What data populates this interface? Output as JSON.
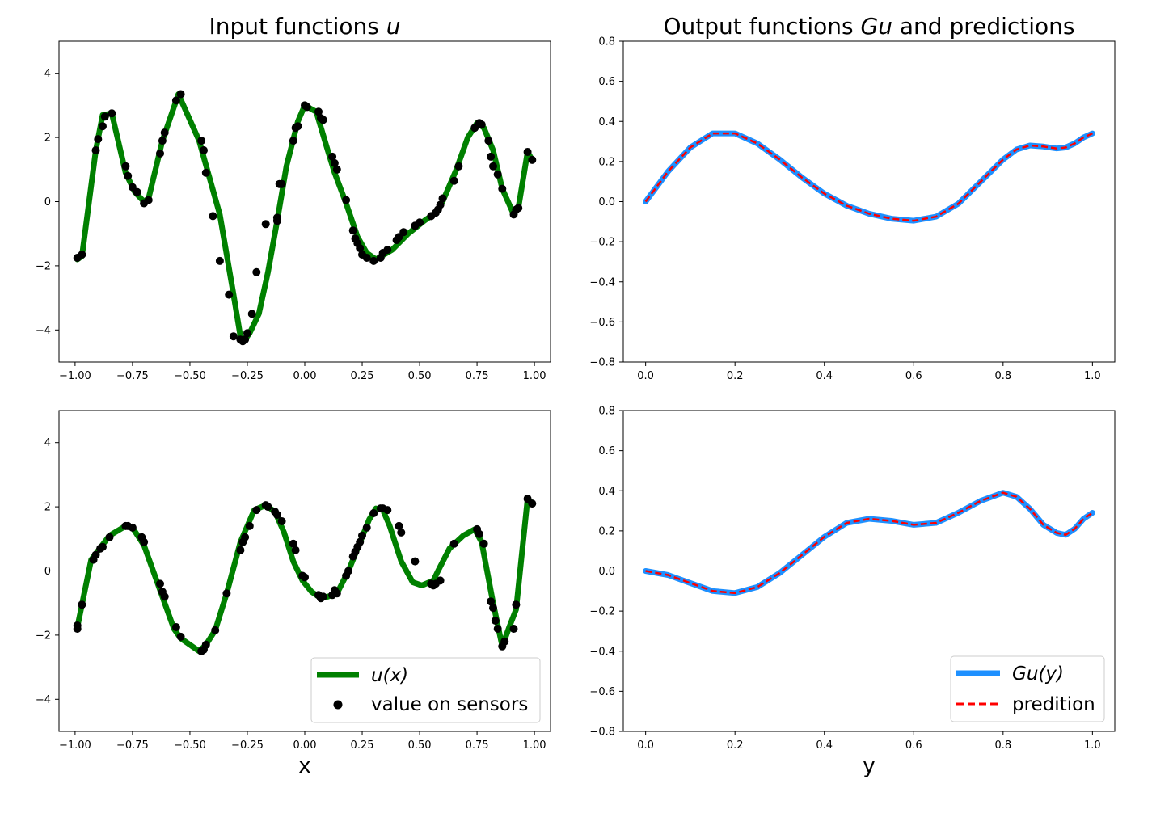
{
  "titles": {
    "left_prefix": "Input functions ",
    "left_var": "u",
    "right_prefix": "Output functions ",
    "right_var": "Gu",
    "right_suffix": " and predictions"
  },
  "xlabels": {
    "left": "x",
    "right": "y"
  },
  "legends": {
    "input": {
      "line": "u(x)",
      "points": "value on sensors"
    },
    "output": {
      "line": "Gu(y)",
      "dashed": "predition"
    }
  },
  "colors": {
    "input_line": "#008000",
    "sensor": "#000000",
    "output_line": "#1e90ff",
    "prediction": "#ff0000"
  },
  "chart_data": [
    {
      "type": "line",
      "panel": "top-left",
      "title": "Input functions u",
      "xlabel": "",
      "xlim": [
        -1.07,
        1.07
      ],
      "ylim": [
        -5,
        5
      ],
      "xticks": [
        "-1.00",
        "-0.75",
        "-0.50",
        "-0.25",
        "0.00",
        "0.25",
        "0.50",
        "0.75",
        "1.00"
      ],
      "yticks": [
        "-4",
        "-2",
        "0",
        "2",
        "4"
      ],
      "series": [
        {
          "x": [
            -0.99,
            -0.97,
            -0.91,
            -0.88,
            -0.84,
            -0.78,
            -0.74,
            -0.7,
            -0.68,
            -0.62,
            -0.55,
            -0.46,
            -0.37,
            -0.31,
            -0.28,
            -0.26,
            -0.24,
            -0.2,
            -0.16,
            -0.12,
            -0.08,
            -0.03,
            0.0,
            0.05,
            0.1,
            0.13,
            0.18,
            0.23,
            0.27,
            0.31,
            0.38,
            0.45,
            0.52,
            0.57,
            0.6,
            0.66,
            0.71,
            0.75,
            0.78,
            0.82,
            0.86,
            0.91,
            0.93,
            0.97,
            0.99
          ],
          "y": [
            -1.8,
            -1.7,
            1.6,
            2.7,
            2.75,
            0.9,
            0.3,
            0.0,
            0.1,
            1.9,
            3.35,
            1.9,
            -0.4,
            -2.9,
            -4.2,
            -4.3,
            -4.1,
            -3.5,
            -2.2,
            -0.6,
            1.1,
            2.5,
            3.0,
            2.8,
            1.6,
            0.9,
            -0.05,
            -1.1,
            -1.6,
            -1.8,
            -1.5,
            -1.0,
            -0.6,
            -0.35,
            0.0,
            1.0,
            2.0,
            2.45,
            2.3,
            1.6,
            0.4,
            -0.4,
            -0.2,
            1.55,
            1.3
          ]
        },
        {
          "x": [
            -0.99,
            -0.97,
            -0.91,
            -0.9,
            -0.88,
            -0.87,
            -0.84,
            -0.78,
            -0.77,
            -0.75,
            -0.73,
            -0.7,
            -0.68,
            -0.63,
            -0.62,
            -0.61,
            -0.56,
            -0.54,
            -0.45,
            -0.44,
            -0.43,
            -0.4,
            -0.37,
            -0.33,
            -0.31,
            -0.28,
            -0.27,
            -0.26,
            -0.25,
            -0.23,
            -0.21,
            -0.17,
            -0.12,
            -0.12,
            -0.11,
            -0.1,
            -0.05,
            -0.04,
            -0.03,
            0.0,
            0.01,
            0.06,
            0.07,
            0.08,
            0.12,
            0.13,
            0.14,
            0.18,
            0.21,
            0.22,
            0.23,
            0.24,
            0.25,
            0.27,
            0.3,
            0.33,
            0.34,
            0.36,
            0.4,
            0.41,
            0.43,
            0.48,
            0.5,
            0.55,
            0.57,
            0.58,
            0.59,
            0.6,
            0.65,
            0.67,
            0.74,
            0.76,
            0.77,
            0.8,
            0.81,
            0.82,
            0.84,
            0.86,
            0.91,
            0.92,
            0.93,
            0.97,
            0.99
          ],
          "y": [
            -1.75,
            -1.65,
            1.6,
            1.95,
            2.35,
            2.65,
            2.75,
            1.1,
            0.8,
            0.45,
            0.3,
            -0.05,
            0.05,
            1.5,
            1.9,
            2.15,
            3.15,
            3.35,
            1.9,
            1.6,
            0.9,
            -0.45,
            -1.85,
            -2.9,
            -4.2,
            -4.3,
            -4.35,
            -4.3,
            -4.1,
            -3.5,
            -2.2,
            -0.7,
            -0.5,
            -0.6,
            0.55,
            0.55,
            1.9,
            2.3,
            2.35,
            3.0,
            2.95,
            2.8,
            2.6,
            2.55,
            1.4,
            1.2,
            1.0,
            0.05,
            -0.9,
            -1.15,
            -1.3,
            -1.45,
            -1.65,
            -1.75,
            -1.85,
            -1.75,
            -1.6,
            -1.5,
            -1.2,
            -1.1,
            -0.95,
            -0.75,
            -0.65,
            -0.45,
            -0.35,
            -0.25,
            -0.1,
            0.1,
            0.65,
            1.1,
            2.3,
            2.45,
            2.4,
            1.9,
            1.4,
            1.1,
            0.85,
            0.4,
            -0.4,
            -0.25,
            -0.2,
            1.55,
            1.3
          ]
        }
      ]
    },
    {
      "type": "line",
      "panel": "top-right",
      "title": "Output functions Gu and predictions",
      "xlabel": "",
      "xlim": [
        -0.05,
        1.05
      ],
      "ylim": [
        -0.8,
        0.8
      ],
      "xticks": [
        "0.0",
        "0.2",
        "0.4",
        "0.6",
        "0.8",
        "1.0"
      ],
      "yticks": [
        "-0.8",
        "-0.6",
        "-0.4",
        "-0.2",
        "0.0",
        "0.2",
        "0.4",
        "0.6",
        "0.8"
      ],
      "x": [
        0.0,
        0.05,
        0.1,
        0.15,
        0.2,
        0.25,
        0.3,
        0.35,
        0.4,
        0.45,
        0.5,
        0.55,
        0.6,
        0.65,
        0.7,
        0.75,
        0.8,
        0.83,
        0.86,
        0.89,
        0.92,
        0.94,
        0.96,
        0.98,
        1.0
      ],
      "series": [
        {
          "values": [
            0.0,
            0.15,
            0.27,
            0.34,
            0.34,
            0.29,
            0.21,
            0.12,
            0.04,
            -0.02,
            -0.06,
            -0.085,
            -0.095,
            -0.075,
            -0.01,
            0.1,
            0.21,
            0.26,
            0.28,
            0.275,
            0.265,
            0.27,
            0.29,
            0.32,
            0.34
          ]
        },
        {
          "values": [
            0.0,
            0.15,
            0.27,
            0.34,
            0.34,
            0.29,
            0.21,
            0.12,
            0.04,
            -0.02,
            -0.06,
            -0.085,
            -0.095,
            -0.075,
            -0.01,
            0.1,
            0.21,
            0.26,
            0.28,
            0.275,
            0.265,
            0.27,
            0.29,
            0.32,
            0.34
          ]
        }
      ]
    },
    {
      "type": "line",
      "panel": "bottom-left",
      "xlabel": "x",
      "xlim": [
        -1.07,
        1.07
      ],
      "ylim": [
        -5,
        5
      ],
      "xticks": [
        "-1.00",
        "-0.75",
        "-0.50",
        "-0.25",
        "0.00",
        "0.25",
        "0.50",
        "0.75",
        "1.00"
      ],
      "yticks": [
        "-4",
        "-2",
        "0",
        "2",
        "4"
      ],
      "series": [
        {
          "x": [
            -0.99,
            -0.97,
            -0.93,
            -0.85,
            -0.78,
            -0.75,
            -0.7,
            -0.64,
            -0.57,
            -0.54,
            -0.46,
            -0.43,
            -0.39,
            -0.34,
            -0.28,
            -0.22,
            -0.17,
            -0.13,
            -0.09,
            -0.05,
            -0.01,
            0.03,
            0.07,
            0.1,
            0.14,
            0.19,
            0.23,
            0.28,
            0.31,
            0.34,
            0.37,
            0.42,
            0.47,
            0.51,
            0.56,
            0.58,
            0.63,
            0.69,
            0.74,
            0.77,
            0.82,
            0.86,
            0.89,
            0.92,
            0.97,
            0.99
          ],
          "y": [
            -1.75,
            -1.05,
            0.35,
            1.1,
            1.4,
            1.35,
            0.8,
            -0.4,
            -1.8,
            -2.1,
            -2.5,
            -2.3,
            -1.85,
            -0.7,
            0.9,
            1.9,
            2.05,
            1.85,
            1.2,
            0.3,
            -0.3,
            -0.65,
            -0.85,
            -0.8,
            -0.7,
            0.0,
            0.7,
            1.6,
            1.95,
            1.9,
            1.4,
            0.3,
            -0.35,
            -0.45,
            -0.3,
            0.0,
            0.7,
            1.1,
            1.3,
            0.9,
            -1.0,
            -2.35,
            -1.75,
            -1.2,
            2.25,
            2.1
          ]
        },
        {
          "x": [
            -0.99,
            -0.99,
            -0.97,
            -0.92,
            -0.91,
            -0.89,
            -0.88,
            -0.85,
            -0.78,
            -0.77,
            -0.75,
            -0.71,
            -0.7,
            -0.63,
            -0.62,
            -0.61,
            -0.56,
            -0.54,
            -0.45,
            -0.44,
            -0.43,
            -0.39,
            -0.34,
            -0.28,
            -0.27,
            -0.26,
            -0.24,
            -0.21,
            -0.17,
            -0.16,
            -0.13,
            -0.12,
            -0.1,
            -0.05,
            -0.04,
            -0.01,
            0.0,
            0.06,
            0.07,
            0.08,
            0.12,
            0.13,
            0.14,
            0.18,
            0.19,
            0.21,
            0.22,
            0.23,
            0.24,
            0.25,
            0.27,
            0.3,
            0.33,
            0.34,
            0.36,
            0.41,
            0.42,
            0.48,
            0.55,
            0.56,
            0.57,
            0.59,
            0.65,
            0.75,
            0.76,
            0.78,
            0.81,
            0.82,
            0.83,
            0.84,
            0.86,
            0.87,
            0.91,
            0.92,
            0.97,
            0.99
          ],
          "y": [
            -1.8,
            -1.7,
            -1.05,
            0.35,
            0.5,
            0.7,
            0.75,
            1.05,
            1.4,
            1.4,
            1.35,
            1.05,
            0.9,
            -0.4,
            -0.65,
            -0.8,
            -1.75,
            -2.05,
            -2.5,
            -2.45,
            -2.3,
            -1.85,
            -0.7,
            0.65,
            0.9,
            1.05,
            1.4,
            1.9,
            2.05,
            2.0,
            1.85,
            1.75,
            1.55,
            0.85,
            0.65,
            -0.15,
            -0.2,
            -0.75,
            -0.85,
            -0.8,
            -0.75,
            -0.6,
            -0.7,
            -0.15,
            0.0,
            0.45,
            0.6,
            0.75,
            0.9,
            1.1,
            1.35,
            1.8,
            1.95,
            1.95,
            1.9,
            1.4,
            1.2,
            0.3,
            -0.4,
            -0.45,
            -0.4,
            -0.3,
            0.85,
            1.3,
            1.15,
            0.85,
            -0.95,
            -1.15,
            -1.55,
            -1.8,
            -2.35,
            -2.2,
            -1.8,
            -1.05,
            2.25,
            2.1
          ]
        }
      ]
    },
    {
      "type": "line",
      "panel": "bottom-right",
      "xlabel": "y",
      "xlim": [
        -0.05,
        1.05
      ],
      "ylim": [
        -0.8,
        0.8
      ],
      "xticks": [
        "0.0",
        "0.2",
        "0.4",
        "0.6",
        "0.8",
        "1.0"
      ],
      "yticks": [
        "-0.8",
        "-0.6",
        "-0.4",
        "-0.2",
        "0.0",
        "0.2",
        "0.4",
        "0.6",
        "0.8"
      ],
      "legend": "lower-right",
      "x": [
        0.0,
        0.05,
        0.1,
        0.15,
        0.2,
        0.25,
        0.3,
        0.35,
        0.4,
        0.45,
        0.5,
        0.55,
        0.6,
        0.65,
        0.7,
        0.75,
        0.8,
        0.83,
        0.86,
        0.89,
        0.92,
        0.94,
        0.96,
        0.98,
        1.0
      ],
      "series": [
        {
          "name": "Gu(y)",
          "values": [
            0.0,
            -0.02,
            -0.06,
            -0.1,
            -0.11,
            -0.08,
            -0.01,
            0.08,
            0.17,
            0.24,
            0.26,
            0.25,
            0.23,
            0.24,
            0.29,
            0.35,
            0.39,
            0.37,
            0.31,
            0.23,
            0.19,
            0.18,
            0.21,
            0.26,
            0.29
          ]
        },
        {
          "name": "predition",
          "values": [
            0.0,
            -0.02,
            -0.06,
            -0.1,
            -0.11,
            -0.08,
            -0.01,
            0.08,
            0.17,
            0.24,
            0.26,
            0.25,
            0.23,
            0.24,
            0.29,
            0.35,
            0.39,
            0.37,
            0.31,
            0.23,
            0.19,
            0.18,
            0.21,
            0.26,
            0.29
          ]
        }
      ]
    }
  ]
}
